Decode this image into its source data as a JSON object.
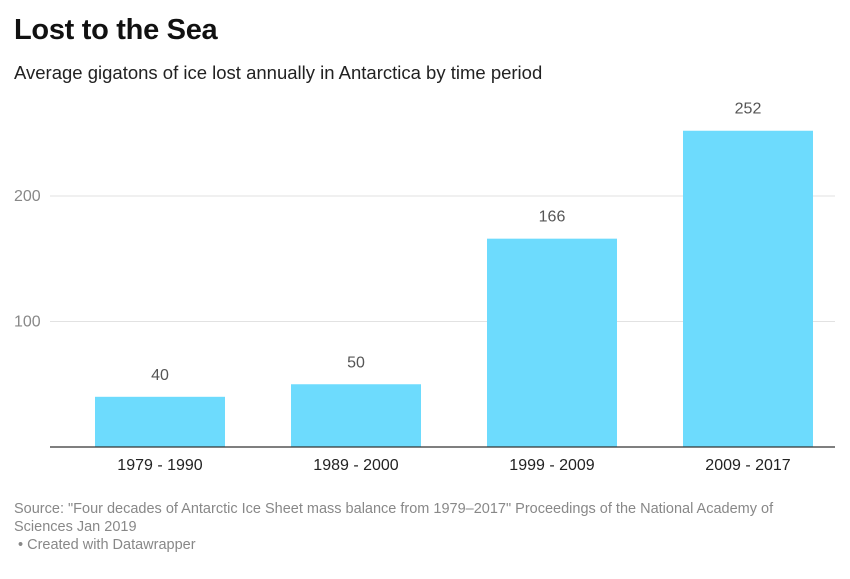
{
  "chart_data": {
    "type": "bar",
    "title": "Lost to the Sea",
    "subtitle": "Average gigatons of ice lost annually in Antarctica by time period",
    "categories": [
      "1979 - 1990",
      "1989 - 2000",
      "1999 - 2009",
      "2009 - 2017"
    ],
    "values": [
      40,
      50,
      166,
      252
    ],
    "ylim": [
      0,
      280
    ],
    "yticks": [
      100,
      200
    ],
    "grid": true,
    "bar_color": "#6ddbfd",
    "xlabel": "",
    "ylabel": ""
  },
  "notes": {
    "source": "Source: \"Four decades of Antarctic Ice Sheet mass balance from 1979–2017\" Proceedings of the National Academy of Sciences Jan 2019",
    "credit": "• Created with Datawrapper"
  }
}
